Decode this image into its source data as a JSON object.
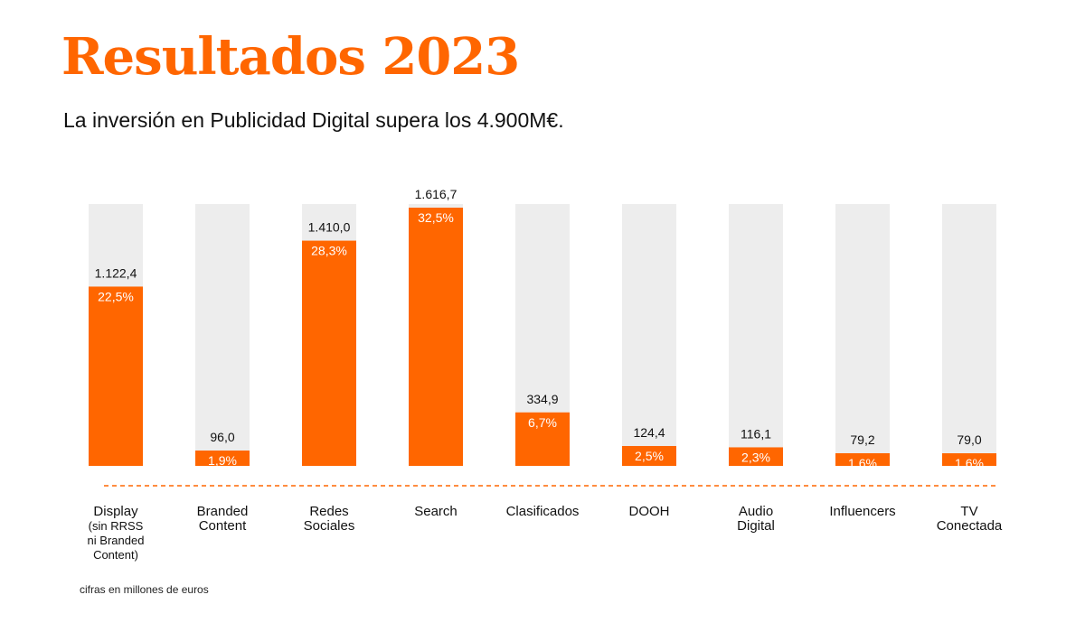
{
  "header": {
    "title": "Resultados 2023",
    "subtitle": "La inversión en Publicidad Digital supera los 4.900M€."
  },
  "footnote": "cifras en millones de euros",
  "colors": {
    "accent": "#FF6600",
    "track": "#EDEDED",
    "text": "#111111"
  },
  "chart_data": {
    "type": "bar",
    "title": "Resultados 2023",
    "subtitle": "La inversión en Publicidad Digital supera los 4.900M€.",
    "units": "cifras en millones de euros",
    "ylim": [
      0,
      1800
    ],
    "categories": [
      [
        "Display",
        "(sin RRSS",
        "ni Branded",
        "Content)"
      ],
      [
        "Branded",
        "Content"
      ],
      [
        "Redes",
        "Sociales"
      ],
      [
        "Search"
      ],
      [
        "Clasificados"
      ],
      [
        "DOOH"
      ],
      [
        "Audio",
        "Digital"
      ],
      [
        "Influencers"
      ],
      [
        "TV",
        "Conectada"
      ]
    ],
    "values": [
      1122.4,
      96.0,
      1410.0,
      1616.7,
      334.9,
      124.4,
      116.1,
      79.2,
      79.0
    ],
    "value_labels": [
      "1.122,4",
      "96,0",
      "1.410,0",
      "1.616,7",
      "334,9",
      "124,4",
      "116,1",
      "79,2",
      "79,0"
    ],
    "share_labels": [
      "22,5%",
      "1,9%",
      "28,3%",
      "32,5%",
      "6,7%",
      "2,5%",
      "2,3%",
      "1,6%",
      "1,6%"
    ]
  }
}
